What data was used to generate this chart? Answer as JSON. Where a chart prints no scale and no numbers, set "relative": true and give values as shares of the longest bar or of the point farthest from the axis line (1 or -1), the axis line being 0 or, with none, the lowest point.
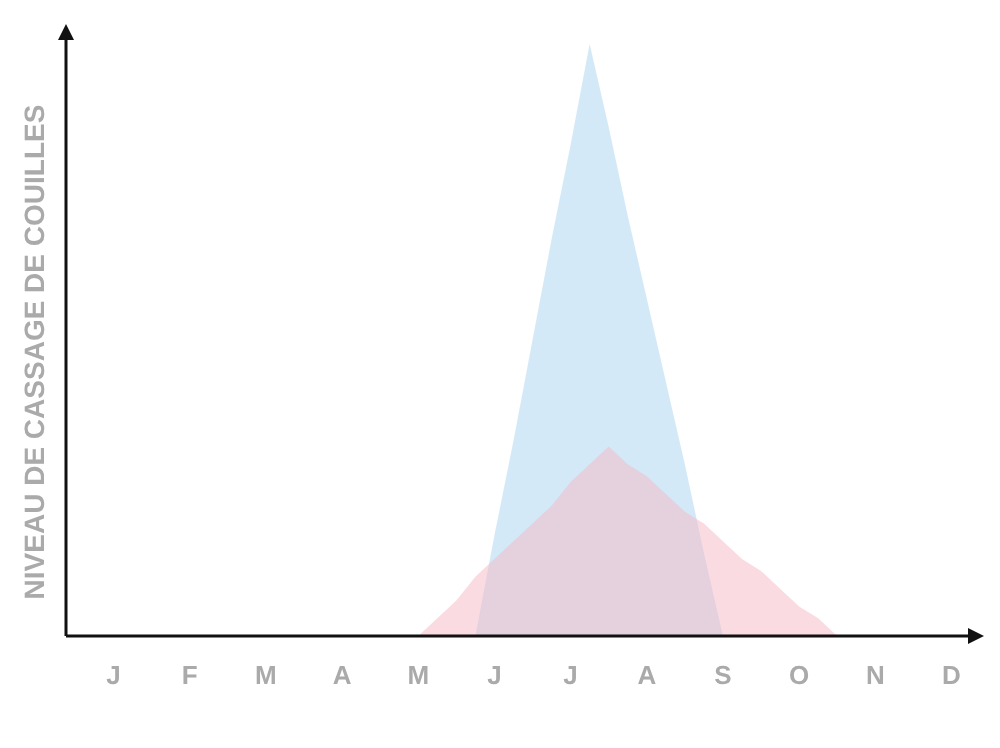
{
  "chart_data": {
    "type": "area",
    "ylabel": "NIVEAU DE CASSAGE DE COUILLES",
    "relative": true,
    "categories": [
      null,
      null,
      "J",
      null,
      null,
      null,
      "F",
      null,
      null,
      null,
      "M",
      null,
      null,
      null,
      "A",
      null,
      null,
      null,
      "M",
      null,
      null,
      null,
      "J",
      null,
      null,
      null,
      "J",
      null,
      null,
      null,
      "A",
      null,
      null,
      null,
      "S",
      null,
      null,
      null,
      "O",
      null,
      null,
      null,
      "N",
      null,
      null,
      null,
      "D",
      null
    ],
    "series": [
      {
        "color": "#aad4f2",
        "values": [
          null,
          null,
          null,
          null,
          null,
          null,
          null,
          null,
          null,
          null,
          null,
          null,
          null,
          null,
          null,
          null,
          null,
          null,
          null,
          null,
          null,
          0,
          0.17,
          0.33,
          0.5,
          0.67,
          0.83,
          1,
          0.86,
          0.71,
          0.57,
          0.43,
          0.29,
          0.14,
          0,
          null,
          null,
          null,
          null,
          null,
          null,
          null,
          null,
          null,
          null,
          null,
          null,
          null
        ]
      },
      {
        "color": "#f5b8c4",
        "values": [
          null,
          null,
          null,
          null,
          null,
          null,
          null,
          null,
          null,
          null,
          null,
          null,
          null,
          null,
          null,
          null,
          null,
          null,
          0,
          0.03,
          0.06,
          0.1,
          0.13,
          0.16,
          0.19,
          0.22,
          0.26,
          0.29,
          0.32,
          0.29,
          0.27,
          0.24,
          0.21,
          0.19,
          0.16,
          0.13,
          0.11,
          0.08,
          0.05,
          0.03,
          0,
          null,
          null,
          null,
          null,
          null,
          null,
          null
        ]
      }
    ]
  }
}
